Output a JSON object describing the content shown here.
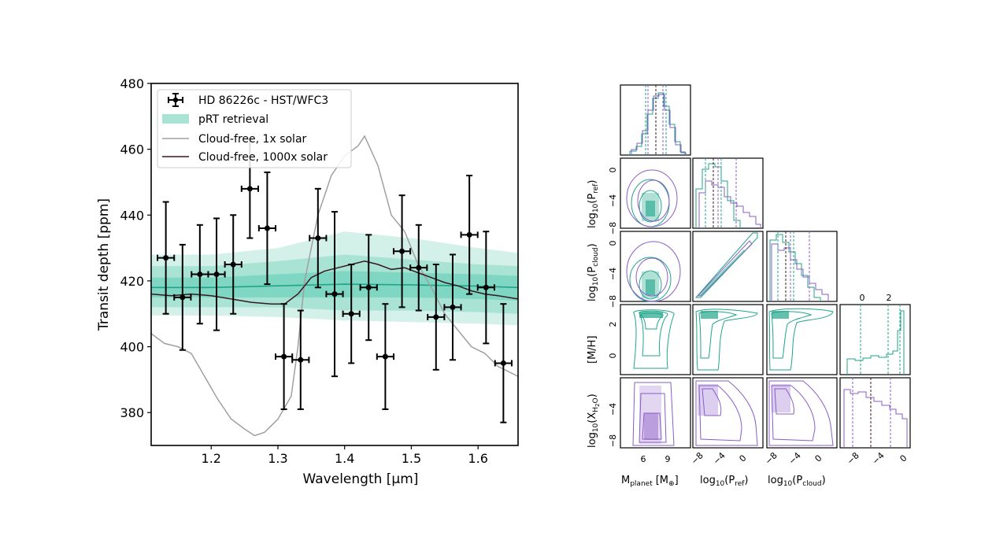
{
  "colors": {
    "teal": "#1fa58a",
    "teal_band_inner": "#7fd6c2",
    "teal_band_mid": "#a8e3d4",
    "teal_band_outer": "#d3f1e9",
    "purple": "#8a5cc8",
    "grey": "#a0a0a0",
    "dark": "#3a1820",
    "black": "#000000"
  },
  "chart_data": [
    {
      "type": "scatter",
      "xlabel": "Wavelength [μm]",
      "ylabel": "Transit depth [ppm]",
      "xlim": [
        1.11,
        1.66
      ],
      "ylim": [
        370,
        480
      ],
      "x_ticks": [
        "1.2",
        "1.3",
        "1.4",
        "1.5",
        "1.6"
      ],
      "x_tick_values": [
        1.2,
        1.3,
        1.4,
        1.5,
        1.6
      ],
      "y_ticks": [
        "380",
        "400",
        "420",
        "440",
        "460",
        "480"
      ],
      "y_tick_values": [
        380,
        400,
        420,
        440,
        460,
        480
      ],
      "legend_position": "top-left",
      "legend": [
        "HD 86226c - HST/WFC3",
        "pRT retrieval",
        "Cloud-free, 1x solar",
        "Cloud-free, 1000x solar"
      ],
      "observations": {
        "name": "HD 86226c - HST/WFC3",
        "x": [
          1.132,
          1.157,
          1.183,
          1.208,
          1.233,
          1.258,
          1.284,
          1.309,
          1.334,
          1.36,
          1.385,
          1.41,
          1.436,
          1.461,
          1.486,
          1.511,
          1.537,
          1.562,
          1.587,
          1.612,
          1.638
        ],
        "y": [
          427,
          415,
          422,
          422,
          425,
          448,
          436,
          397,
          396,
          433,
          416,
          410,
          418,
          397,
          429,
          424,
          409,
          412,
          434,
          418,
          395
        ],
        "yerr": [
          17,
          16,
          15,
          17,
          15,
          15,
          17,
          16,
          15,
          15,
          25,
          15,
          16,
          16,
          17,
          13,
          16,
          16,
          18,
          17,
          18
        ],
        "xerr": 0.0125
      },
      "retrieval": {
        "name": "pRT retrieval",
        "x": [
          1.11,
          1.2,
          1.3,
          1.4,
          1.5,
          1.6,
          1.66
        ],
        "median": [
          418,
          418,
          418.5,
          419,
          418.8,
          418.4,
          418
        ],
        "band1_lo": [
          415,
          415,
          415,
          415,
          415,
          414.5,
          414
        ],
        "band1_hi": [
          421,
          421,
          422,
          423,
          422.5,
          422,
          421.5
        ],
        "band2_lo": [
          412,
          412,
          412,
          411,
          411,
          410.5,
          410
        ],
        "band2_hi": [
          424.5,
          424.5,
          426,
          428,
          426.5,
          425,
          424.5
        ],
        "band3_lo": [
          409.5,
          409.5,
          409,
          408,
          407.5,
          407,
          406.5
        ],
        "band3_hi": [
          428,
          428,
          430,
          435,
          433,
          430,
          428.5
        ]
      },
      "model_1x": {
        "name": "Cloud-free, 1x solar",
        "x": [
          1.11,
          1.13,
          1.15,
          1.17,
          1.19,
          1.21,
          1.23,
          1.25,
          1.265,
          1.28,
          1.3,
          1.32,
          1.33,
          1.34,
          1.36,
          1.38,
          1.4,
          1.42,
          1.43,
          1.45,
          1.47,
          1.49,
          1.51,
          1.53,
          1.55,
          1.57,
          1.59,
          1.61,
          1.63,
          1.66
        ],
        "y": [
          404,
          401,
          400,
          398,
          391,
          384,
          378,
          375,
          373,
          374,
          378,
          385,
          400,
          420,
          440,
          452,
          458,
          461,
          464,
          455,
          440,
          435,
          425,
          418,
          410,
          405,
          400,
          398,
          394,
          391
        ]
      },
      "model_1000x": {
        "name": "Cloud-free, 1000x solar",
        "x": [
          1.11,
          1.14,
          1.17,
          1.2,
          1.23,
          1.26,
          1.29,
          1.31,
          1.33,
          1.35,
          1.37,
          1.39,
          1.41,
          1.43,
          1.45,
          1.47,
          1.49,
          1.51,
          1.53,
          1.55,
          1.57,
          1.59,
          1.61,
          1.63,
          1.66
        ],
        "y": [
          416,
          415.5,
          416,
          415.5,
          414.5,
          413.5,
          413,
          413,
          416,
          421,
          423,
          424,
          425,
          426,
          425,
          423.5,
          424,
          422.5,
          421,
          419.5,
          418.5,
          417,
          416,
          415.5,
          414.5
        ]
      }
    },
    {
      "type": "heatmap",
      "subtype": "corner-plot",
      "params": [
        "M_planet",
        "log10(P_ref)",
        "log10(P_cloud)",
        "[M/H]",
        "log10(X_H2O)"
      ],
      "x_axis_labels": [
        "M",
        "planet",
        "[M",
        "⊕",
        "]",
        "log",
        "10",
        "(P",
        "ref",
        ")",
        "log",
        "10",
        "(P",
        "cloud",
        ")"
      ],
      "y_axis_labels": [
        "log",
        "10",
        "(P",
        "ref",
        ")",
        "log",
        "10",
        "(P",
        "cloud",
        ")",
        "[M/H]",
        "log",
        "10",
        "(X",
        "H",
        "2",
        "O",
        ")"
      ],
      "tick_mass": [
        "6",
        "9"
      ],
      "tick_logp": [
        "−8",
        "−4",
        "0"
      ],
      "tick_mh_x": [
        "0",
        "2"
      ],
      "tick_mh_y": [
        "2",
        "0"
      ],
      "tick_xh2o": [
        "−8",
        "−4",
        "0"
      ],
      "tick_logp_y": [
        "0",
        "−4",
        "−8"
      ],
      "series": [
        {
          "name": "teal"
        },
        {
          "name": "purple"
        }
      ]
    }
  ]
}
